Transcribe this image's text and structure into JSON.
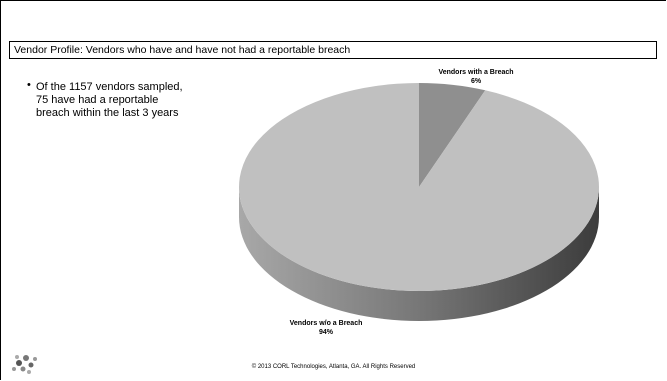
{
  "chart_data": {
    "type": "pie",
    "title": "Vendor Profile: Vendors who have and have not had a reportable breach",
    "categories": [
      "Vendors with a Breach",
      "Vendors w/o a Breach"
    ],
    "values": [
      6,
      94
    ],
    "value_labels": [
      "6%",
      "94%"
    ],
    "colors": [
      "#8f8f8f",
      "#c0c0c0"
    ]
  },
  "slide": {
    "bullet": "Of the 1157 vendors sampled, 75 have had a reportable breach within the last 3 years",
    "footer": "© 2013 CORL Technologies, Atlanta, GA. All Rights Reserved"
  }
}
